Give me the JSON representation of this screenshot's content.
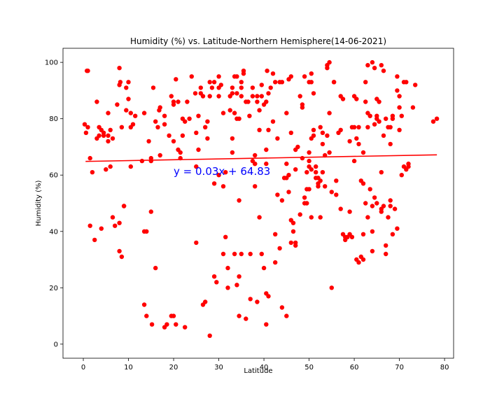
{
  "chart_data": {
    "type": "scatter",
    "title": "Humidity (%) vs. Latitude-Northern Hemisphere(14-06-2021)",
    "xlabel": "Latitude",
    "ylabel": "Humidity (%)",
    "xlim": [
      -4.5,
      82
    ],
    "ylim": [
      -5,
      105
    ],
    "xticks": [
      0,
      10,
      20,
      30,
      40,
      50,
      60,
      70,
      80
    ],
    "yticks": [
      0,
      20,
      40,
      60,
      80,
      100
    ],
    "grid": false,
    "colors": {
      "points": "#ff0000",
      "line": "#ff0000",
      "annotation": "#0000ff"
    },
    "regression": {
      "slope": 0.03,
      "intercept": 64.83,
      "x_range": [
        0.5,
        78.3
      ]
    },
    "annotation": {
      "text": "y = 0.03x + 64.83",
      "x": 20,
      "y": 60
    },
    "points": [
      [
        0.3,
        78
      ],
      [
        0.6,
        75
      ],
      [
        0.8,
        97
      ],
      [
        1,
        97
      ],
      [
        1,
        77
      ],
      [
        1.5,
        66
      ],
      [
        1.5,
        42
      ],
      [
        2,
        61
      ],
      [
        2.5,
        37
      ],
      [
        3,
        73
      ],
      [
        3,
        86
      ],
      [
        3.5,
        74
      ],
      [
        3.5,
        77
      ],
      [
        4,
        41
      ],
      [
        4,
        76
      ],
      [
        4.5,
        75
      ],
      [
        4.5,
        74
      ],
      [
        5,
        62
      ],
      [
        5.5,
        74
      ],
      [
        5.5,
        72
      ],
      [
        5.5,
        82
      ],
      [
        6,
        76
      ],
      [
        6,
        63
      ],
      [
        6.5,
        73
      ],
      [
        6.5,
        45
      ],
      [
        7,
        42
      ],
      [
        7.5,
        85
      ],
      [
        8,
        98
      ],
      [
        8,
        92
      ],
      [
        8,
        43
      ],
      [
        8,
        33
      ],
      [
        8.2,
        93
      ],
      [
        8.5,
        77
      ],
      [
        8.5,
        31
      ],
      [
        9,
        49
      ],
      [
        9,
        49
      ],
      [
        9.5,
        83
      ],
      [
        9.5,
        91
      ],
      [
        10,
        93
      ],
      [
        10,
        87
      ],
      [
        10.5,
        82
      ],
      [
        10.5,
        63
      ],
      [
        10.5,
        77
      ],
      [
        11,
        78
      ],
      [
        11.5,
        81
      ],
      [
        13,
        65
      ],
      [
        13.5,
        82
      ],
      [
        13.5,
        40
      ],
      [
        13.5,
        14
      ],
      [
        14,
        40
      ],
      [
        14,
        10
      ],
      [
        14.5,
        72
      ],
      [
        15,
        66
      ],
      [
        15,
        47
      ],
      [
        15,
        65
      ],
      [
        15.2,
        7
      ],
      [
        15.5,
        91
      ],
      [
        16,
        79
      ],
      [
        16,
        27
      ],
      [
        16.5,
        77
      ],
      [
        16.8,
        83
      ],
      [
        17,
        84
      ],
      [
        17,
        67
      ],
      [
        18,
        81
      ],
      [
        18,
        78
      ],
      [
        18,
        6
      ],
      [
        18.5,
        7
      ],
      [
        19,
        74
      ],
      [
        19.5,
        88
      ],
      [
        19.5,
        10
      ],
      [
        20,
        86
      ],
      [
        20,
        72
      ],
      [
        20,
        10
      ],
      [
        20,
        85
      ],
      [
        20.5,
        7
      ],
      [
        20.5,
        94
      ],
      [
        21,
        86
      ],
      [
        21,
        69
      ],
      [
        21.5,
        68
      ],
      [
        21.5,
        66
      ],
      [
        22,
        80
      ],
      [
        22,
        74
      ],
      [
        22.5,
        79
      ],
      [
        22.5,
        6
      ],
      [
        23,
        86
      ],
      [
        23.5,
        80
      ],
      [
        24,
        95
      ],
      [
        24.8,
        89
      ],
      [
        25,
        75
      ],
      [
        25,
        63
      ],
      [
        25,
        36
      ],
      [
        25.5,
        69
      ],
      [
        25.5,
        81
      ],
      [
        26,
        91
      ],
      [
        26,
        89
      ],
      [
        26.5,
        14
      ],
      [
        26.5,
        88
      ],
      [
        27,
        77
      ],
      [
        27,
        15
      ],
      [
        27.5,
        73
      ],
      [
        27.5,
        79
      ],
      [
        28,
        88
      ],
      [
        28,
        93
      ],
      [
        28,
        3
      ],
      [
        28.5,
        91
      ],
      [
        29,
        93
      ],
      [
        29,
        24
      ],
      [
        29,
        57
      ],
      [
        29.5,
        22
      ],
      [
        30,
        95
      ],
      [
        30,
        88
      ],
      [
        30,
        60
      ],
      [
        30,
        91
      ],
      [
        30.5,
        92
      ],
      [
        31,
        82
      ],
      [
        31,
        56
      ],
      [
        31,
        32
      ],
      [
        31.5,
        38
      ],
      [
        31.5,
        61
      ],
      [
        32,
        27
      ],
      [
        32,
        20
      ],
      [
        32.5,
        88
      ],
      [
        32.5,
        83
      ],
      [
        33,
        73
      ],
      [
        33,
        91
      ],
      [
        33,
        68
      ],
      [
        33,
        89
      ],
      [
        33.5,
        82
      ],
      [
        33.5,
        95
      ],
      [
        33.5,
        32
      ],
      [
        34,
        89
      ],
      [
        34,
        80
      ],
      [
        34,
        21
      ],
      [
        34,
        95
      ],
      [
        34.5,
        24
      ],
      [
        34.5,
        51
      ],
      [
        34.5,
        80
      ],
      [
        34.5,
        10
      ],
      [
        35,
        88
      ],
      [
        35,
        32
      ],
      [
        35,
        93
      ],
      [
        35,
        91
      ],
      [
        35.5,
        96
      ],
      [
        35.5,
        97
      ],
      [
        36,
        86
      ],
      [
        36,
        9
      ],
      [
        36.5,
        86
      ],
      [
        36.8,
        81
      ],
      [
        37,
        32
      ],
      [
        37,
        16
      ],
      [
        37.5,
        91
      ],
      [
        37.5,
        65
      ],
      [
        37.5,
        88
      ],
      [
        38,
        67
      ],
      [
        38,
        56
      ],
      [
        38,
        64
      ],
      [
        38,
        64
      ],
      [
        38.5,
        15
      ],
      [
        38.5,
        88
      ],
      [
        38.5,
        86
      ],
      [
        39,
        45
      ],
      [
        39,
        83
      ],
      [
        39,
        76
      ],
      [
        39.5,
        92
      ],
      [
        39.5,
        88
      ],
      [
        39.5,
        32
      ],
      [
        40,
        85
      ],
      [
        40,
        27
      ],
      [
        40.5,
        7
      ],
      [
        40.5,
        69
      ],
      [
        40.5,
        86
      ],
      [
        40.5,
        64
      ],
      [
        40.5,
        18
      ],
      [
        40.7,
        97
      ],
      [
        41,
        89
      ],
      [
        41,
        76
      ],
      [
        41,
        17
      ],
      [
        41.5,
        91
      ],
      [
        42,
        96
      ],
      [
        42,
        79
      ],
      [
        42.5,
        93
      ],
      [
        42.5,
        39
      ],
      [
        42.5,
        29
      ],
      [
        43,
        73
      ],
      [
        43,
        53
      ],
      [
        43.5,
        93
      ],
      [
        43.5,
        34
      ],
      [
        44,
        93
      ],
      [
        44,
        51
      ],
      [
        44,
        13
      ],
      [
        44.5,
        59
      ],
      [
        45,
        59
      ],
      [
        45,
        64
      ],
      [
        45,
        82
      ],
      [
        45,
        10
      ],
      [
        45.5,
        94
      ],
      [
        45.5,
        54
      ],
      [
        45.5,
        60
      ],
      [
        46,
        95
      ],
      [
        46,
        75
      ],
      [
        46,
        36
      ],
      [
        46,
        44
      ],
      [
        46.5,
        43
      ],
      [
        46.5,
        40
      ],
      [
        47,
        35
      ],
      [
        47,
        69
      ],
      [
        47,
        62
      ],
      [
        47,
        36
      ],
      [
        47.5,
        70
      ],
      [
        48,
        88
      ],
      [
        48,
        46
      ],
      [
        48.5,
        84
      ],
      [
        48.5,
        66
      ],
      [
        48.5,
        85
      ],
      [
        49,
        95
      ],
      [
        49,
        52
      ],
      [
        49,
        50
      ],
      [
        49.5,
        55
      ],
      [
        49.5,
        61
      ],
      [
        49.5,
        50
      ],
      [
        50,
        68
      ],
      [
        50,
        63
      ],
      [
        50,
        93
      ],
      [
        50,
        65
      ],
      [
        50,
        55
      ],
      [
        50.5,
        96
      ],
      [
        50.5,
        93
      ],
      [
        50.5,
        73
      ],
      [
        50.5,
        45
      ],
      [
        50.5,
        62
      ],
      [
        51,
        89
      ],
      [
        51,
        76
      ],
      [
        51,
        74
      ],
      [
        51.5,
        63
      ],
      [
        51.5,
        61
      ],
      [
        51.5,
        59
      ],
      [
        52,
        56
      ],
      [
        52,
        57
      ],
      [
        52,
        59
      ],
      [
        52.5,
        45
      ],
      [
        52.5,
        58
      ],
      [
        52.5,
        77
      ],
      [
        53,
        61
      ],
      [
        53,
        71
      ],
      [
        53,
        75
      ],
      [
        53.5,
        56
      ],
      [
        53.5,
        67
      ],
      [
        54,
        98
      ],
      [
        54,
        99
      ],
      [
        54,
        74
      ],
      [
        54.5,
        100
      ],
      [
        54.5,
        82
      ],
      [
        54.5,
        68
      ],
      [
        55,
        20
      ],
      [
        55,
        54
      ],
      [
        55.5,
        93
      ],
      [
        55.5,
        93
      ],
      [
        56,
        58
      ],
      [
        56,
        53
      ],
      [
        56.5,
        75
      ],
      [
        57,
        48
      ],
      [
        57,
        88
      ],
      [
        57,
        76
      ],
      [
        57.5,
        39
      ],
      [
        57.5,
        87
      ],
      [
        58,
        38
      ],
      [
        58,
        37
      ],
      [
        58.5,
        38
      ],
      [
        59,
        72
      ],
      [
        59,
        47
      ],
      [
        59,
        39
      ],
      [
        59.5,
        77
      ],
      [
        59.5,
        38
      ],
      [
        60,
        88
      ],
      [
        60,
        77
      ],
      [
        60,
        65
      ],
      [
        60.5,
        73
      ],
      [
        60.5,
        87
      ],
      [
        60.5,
        30
      ],
      [
        61,
        71
      ],
      [
        61,
        77
      ],
      [
        61,
        29
      ],
      [
        61.5,
        58
      ],
      [
        61.5,
        31
      ],
      [
        62,
        57
      ],
      [
        62,
        39
      ],
      [
        62,
        68
      ],
      [
        62,
        30
      ],
      [
        62.5,
        86
      ],
      [
        62.5,
        50
      ],
      [
        62.5,
        93
      ],
      [
        63,
        82
      ],
      [
        63,
        99
      ],
      [
        63,
        77
      ],
      [
        63,
        45
      ],
      [
        63.5,
        55
      ],
      [
        63.5,
        81
      ],
      [
        64,
        100
      ],
      [
        64,
        33
      ],
      [
        64,
        49
      ],
      [
        64,
        40
      ],
      [
        64.5,
        52
      ],
      [
        64.5,
        78
      ],
      [
        64.5,
        98
      ],
      [
        65,
        81
      ],
      [
        65,
        87
      ],
      [
        65,
        50
      ],
      [
        65,
        80
      ],
      [
        65.5,
        86
      ],
      [
        65.5,
        79
      ],
      [
        66,
        99
      ],
      [
        66,
        47
      ],
      [
        66,
        48
      ],
      [
        66,
        61
      ],
      [
        66.5,
        97
      ],
      [
        66.5,
        49
      ],
      [
        66.5,
        74
      ],
      [
        67,
        35
      ],
      [
        67,
        32
      ],
      [
        67,
        80
      ],
      [
        67.5,
        77
      ],
      [
        67.5,
        45
      ],
      [
        68,
        49
      ],
      [
        68,
        51
      ],
      [
        68,
        77
      ],
      [
        68,
        71
      ],
      [
        68.5,
        39
      ],
      [
        68.5,
        81
      ],
      [
        68.5,
        80
      ],
      [
        69,
        48
      ],
      [
        69.5,
        41
      ],
      [
        69.5,
        95
      ],
      [
        69.5,
        90
      ],
      [
        70,
        76
      ],
      [
        70,
        88
      ],
      [
        70,
        84
      ],
      [
        70.5,
        81
      ],
      [
        70.5,
        60
      ],
      [
        71,
        93
      ],
      [
        71,
        63
      ],
      [
        71.5,
        93
      ],
      [
        71.5,
        62
      ],
      [
        72,
        64
      ],
      [
        72,
        63
      ],
      [
        73,
        84
      ],
      [
        73.5,
        92
      ],
      [
        77.5,
        79
      ],
      [
        78.3,
        80
      ]
    ]
  }
}
